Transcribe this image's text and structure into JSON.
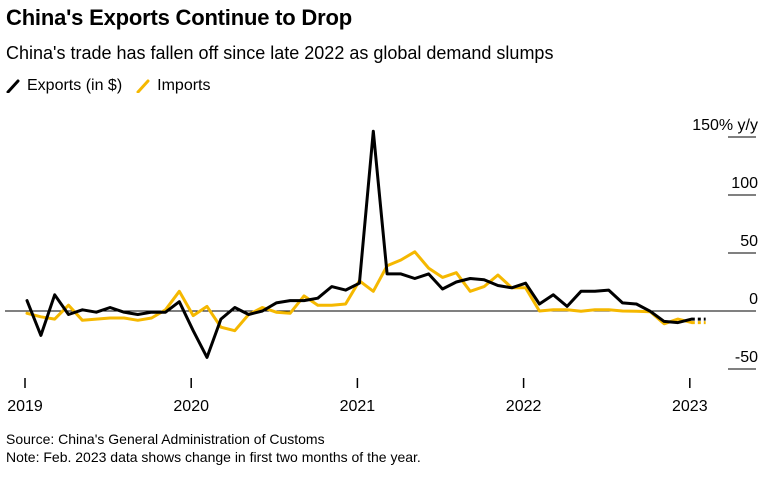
{
  "header": {
    "title": "China's Exports Continue to Drop",
    "subtitle": "China's trade has fallen off since late 2022 as global demand slumps"
  },
  "legend": [
    {
      "label": "Exports (in $)",
      "color": "#000000"
    },
    {
      "label": "Imports",
      "color": "#f5b800"
    }
  ],
  "footer": {
    "source": "Source: China's General Administration of Customs",
    "note": "Note: Feb. 2023 data shows change in first two months of the year."
  },
  "chart_data": {
    "type": "line",
    "ylabel": "150% y/y",
    "ylim": [
      -50,
      150
    ],
    "yticks": [
      {
        "value": 150,
        "label": "150% y/y"
      },
      {
        "value": 100,
        "label": "100"
      },
      {
        "value": 50,
        "label": "50"
      },
      {
        "value": 0,
        "label": "0"
      },
      {
        "value": -50,
        "label": "-50"
      }
    ],
    "xticks": [
      "2019",
      "2020",
      "2021",
      "2022",
      "2023"
    ],
    "x_start": "2019-01",
    "zero_line": true,
    "grid": false,
    "series": [
      {
        "name": "Exports (in $)",
        "color": "#000000",
        "values": [
          9,
          -21,
          14,
          -3,
          1,
          -1,
          3,
          -1,
          -3,
          -1,
          -1,
          8,
          -17,
          -40,
          -7,
          3,
          -3,
          0,
          7,
          9,
          9,
          11,
          21,
          18,
          24,
          155,
          32,
          32,
          28,
          32,
          19,
          25,
          28,
          27,
          22,
          20,
          24,
          6,
          14,
          4,
          17,
          17,
          18,
          7,
          6,
          -0.3,
          -9,
          -10,
          -7,
          -7
        ]
      },
      {
        "name": "Imports",
        "color": "#f5b800",
        "values": [
          -2,
          -5,
          -7,
          5,
          -8,
          -7,
          -6,
          -6,
          -8,
          -6,
          1,
          17,
          -4,
          4,
          -14,
          -17,
          -3,
          3,
          -1,
          -2,
          13,
          5,
          5,
          6,
          26,
          17,
          39,
          44,
          51,
          37,
          29,
          33,
          17,
          21,
          31,
          20,
          20,
          0,
          1,
          1,
          -0.3,
          1,
          1,
          0,
          -0.3,
          -0.7,
          -11,
          -7,
          -10,
          -10
        ]
      }
    ]
  }
}
